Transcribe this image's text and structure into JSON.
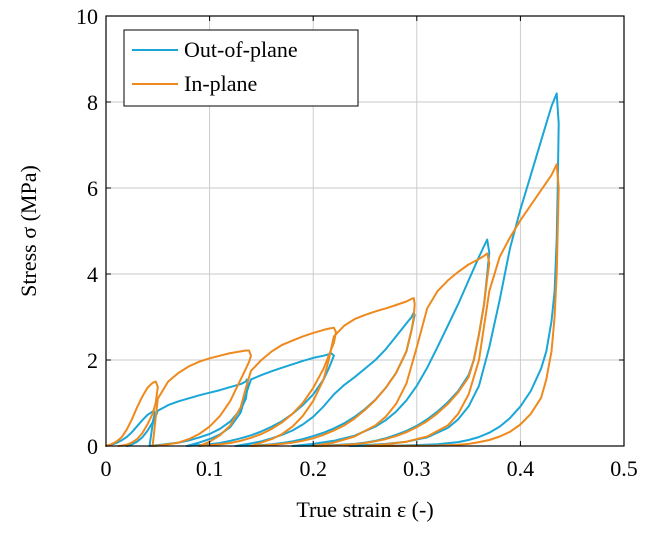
{
  "chart_data": {
    "type": "line",
    "xlabel": "True strain ε (-)",
    "ylabel": "Stress σ (MPa)",
    "xlim": [
      0,
      0.5
    ],
    "ylim": [
      0,
      10
    ],
    "xticks": [
      0,
      0.1,
      0.2,
      0.3,
      0.4,
      0.5
    ],
    "xtick_labels": [
      "0",
      "0.1",
      "0.2",
      "0.3",
      "0.4",
      "0.5"
    ],
    "yticks": [
      0,
      2,
      4,
      6,
      8,
      10
    ],
    "ytick_labels": [
      "0",
      "2",
      "4",
      "6",
      "8",
      "10"
    ],
    "grid": true,
    "legend_position": "top-left",
    "series": [
      {
        "name": "Out-of-plane",
        "color": "#1aa6d6",
        "cycles": [
          {
            "x": [
              0.0,
              0.005,
              0.01,
              0.015,
              0.02,
              0.025,
              0.03,
              0.035,
              0.04,
              0.045,
              0.046,
              0.047,
              0.045,
              0.04,
              0.035,
              0.03,
              0.025,
              0.022,
              0.02
            ],
            "y": [
              0.0,
              0.03,
              0.07,
              0.13,
              0.21,
              0.32,
              0.46,
              0.6,
              0.72,
              0.8,
              0.82,
              0.75,
              0.55,
              0.35,
              0.2,
              0.1,
              0.04,
              0.01,
              0.0
            ]
          },
          {
            "x": [
              0.042,
              0.045,
              0.05,
              0.06,
              0.07,
              0.08,
              0.09,
              0.1,
              0.11,
              0.12,
              0.13,
              0.135,
              0.136,
              0.137,
              0.135,
              0.13,
              0.12,
              0.11,
              0.1,
              0.09,
              0.08,
              0.07,
              0.06,
              0.05,
              0.045,
              0.042
            ],
            "y": [
              0.0,
              0.5,
              0.82,
              0.95,
              1.04,
              1.11,
              1.18,
              1.24,
              1.3,
              1.37,
              1.44,
              1.5,
              1.55,
              1.45,
              1.1,
              0.85,
              0.57,
              0.4,
              0.28,
              0.2,
              0.13,
              0.08,
              0.05,
              0.02,
              0.01,
              0.0
            ]
          },
          {
            "x": [
              0.078,
              0.09,
              0.1,
              0.11,
              0.12,
              0.13,
              0.135,
              0.14,
              0.15,
              0.16,
              0.17,
              0.18,
              0.19,
              0.2,
              0.21,
              0.215,
              0.218,
              0.22,
              0.215,
              0.21,
              0.2,
              0.19,
              0.18,
              0.17,
              0.16,
              0.15,
              0.14,
              0.13,
              0.12,
              0.11,
              0.1,
              0.09,
              0.078
            ],
            "y": [
              0.0,
              0.08,
              0.16,
              0.27,
              0.44,
              0.78,
              1.2,
              1.55,
              1.65,
              1.74,
              1.82,
              1.9,
              1.98,
              2.05,
              2.1,
              2.13,
              2.15,
              2.1,
              1.8,
              1.55,
              1.2,
              0.95,
              0.75,
              0.58,
              0.45,
              0.34,
              0.25,
              0.18,
              0.12,
              0.07,
              0.04,
              0.02,
              0.0
            ]
          },
          {
            "x": [
              0.125,
              0.14,
              0.15,
              0.16,
              0.17,
              0.18,
              0.19,
              0.2,
              0.21,
              0.22,
              0.23,
              0.24,
              0.25,
              0.26,
              0.27,
              0.28,
              0.29,
              0.295,
              0.297,
              0.298,
              0.295,
              0.29,
              0.28,
              0.27,
              0.26,
              0.25,
              0.24,
              0.23,
              0.22,
              0.21,
              0.2,
              0.19,
              0.18,
              0.17,
              0.16,
              0.15,
              0.14,
              0.125
            ],
            "y": [
              0.0,
              0.06,
              0.11,
              0.18,
              0.26,
              0.36,
              0.5,
              0.68,
              0.92,
              1.2,
              1.42,
              1.6,
              1.8,
              2.0,
              2.25,
              2.55,
              2.85,
              3.0,
              3.1,
              3.05,
              2.7,
              2.2,
              1.7,
              1.35,
              1.08,
              0.86,
              0.68,
              0.53,
              0.41,
              0.31,
              0.23,
              0.16,
              0.11,
              0.07,
              0.04,
              0.02,
              0.01,
              0.0
            ]
          },
          {
            "x": [
              0.18,
              0.2,
              0.22,
              0.24,
              0.26,
              0.27,
              0.28,
              0.29,
              0.3,
              0.31,
              0.32,
              0.33,
              0.34,
              0.35,
              0.36,
              0.365,
              0.368,
              0.37,
              0.368,
              0.365,
              0.36,
              0.355,
              0.35,
              0.34,
              0.33,
              0.32,
              0.31,
              0.3,
              0.29,
              0.28,
              0.27,
              0.26,
              0.25,
              0.24,
              0.22,
              0.2,
              0.18
            ],
            "y": [
              0.0,
              0.05,
              0.12,
              0.24,
              0.45,
              0.6,
              0.8,
              1.06,
              1.4,
              1.82,
              2.3,
              2.8,
              3.3,
              3.85,
              4.4,
              4.65,
              4.8,
              4.5,
              4.0,
              3.3,
              2.6,
              2.0,
              1.65,
              1.28,
              1.02,
              0.8,
              0.62,
              0.47,
              0.35,
              0.26,
              0.18,
              0.12,
              0.08,
              0.05,
              0.02,
              0.01,
              0.0
            ]
          },
          {
            "x": [
              0.235,
              0.25,
              0.27,
              0.29,
              0.31,
              0.33,
              0.34,
              0.35,
              0.36,
              0.37,
              0.38,
              0.39,
              0.4,
              0.41,
              0.42,
              0.43,
              0.435,
              0.437,
              0.436,
              0.435,
              0.433,
              0.43,
              0.425,
              0.42,
              0.41,
              0.4,
              0.39,
              0.38,
              0.37,
              0.36,
              0.35,
              0.34,
              0.32,
              0.3,
              0.28,
              0.26,
              0.25,
              0.235
            ],
            "y": [
              0.0,
              0.02,
              0.05,
              0.1,
              0.2,
              0.42,
              0.62,
              0.92,
              1.4,
              2.3,
              3.4,
              4.6,
              5.5,
              6.3,
              7.1,
              7.9,
              8.2,
              7.5,
              6.0,
              4.8,
              3.6,
              2.9,
              2.2,
              1.8,
              1.28,
              0.92,
              0.65,
              0.45,
              0.31,
              0.21,
              0.14,
              0.09,
              0.04,
              0.02,
              0.01,
              0.005,
              0.002,
              0.0
            ]
          }
        ]
      },
      {
        "name": "In-plane",
        "color": "#ee8a1d",
        "cycles": [
          {
            "x": [
              0.0,
              0.005,
              0.01,
              0.015,
              0.02,
              0.025,
              0.03,
              0.035,
              0.04,
              0.045,
              0.048,
              0.05,
              0.048,
              0.045,
              0.04,
              0.035,
              0.03,
              0.025,
              0.02,
              0.015,
              0.012
            ],
            "y": [
              0.0,
              0.04,
              0.1,
              0.2,
              0.38,
              0.62,
              0.9,
              1.15,
              1.35,
              1.47,
              1.5,
              1.38,
              1.0,
              0.75,
              0.5,
              0.3,
              0.16,
              0.08,
              0.03,
              0.01,
              0.0
            ]
          },
          {
            "x": [
              0.045,
              0.05,
              0.06,
              0.07,
              0.08,
              0.09,
              0.1,
              0.11,
              0.12,
              0.13,
              0.135,
              0.138,
              0.14,
              0.138,
              0.135,
              0.13,
              0.125,
              0.12,
              0.11,
              0.1,
              0.09,
              0.08,
              0.07,
              0.06,
              0.05,
              0.045
            ],
            "y": [
              0.0,
              1.1,
              1.5,
              1.7,
              1.85,
              1.96,
              2.04,
              2.1,
              2.16,
              2.2,
              2.22,
              2.22,
              2.1,
              1.95,
              1.8,
              1.55,
              1.3,
              1.05,
              0.7,
              0.45,
              0.28,
              0.16,
              0.08,
              0.04,
              0.01,
              0.0
            ]
          },
          {
            "x": [
              0.09,
              0.1,
              0.11,
              0.12,
              0.13,
              0.135,
              0.14,
              0.15,
              0.16,
              0.17,
              0.18,
              0.19,
              0.2,
              0.21,
              0.215,
              0.22,
              0.222,
              0.22,
              0.215,
              0.21,
              0.2,
              0.19,
              0.18,
              0.17,
              0.16,
              0.15,
              0.14,
              0.13,
              0.12,
              0.11,
              0.1,
              0.09
            ],
            "y": [
              0.0,
              0.1,
              0.25,
              0.48,
              0.9,
              1.35,
              1.75,
              2.0,
              2.2,
              2.35,
              2.45,
              2.55,
              2.63,
              2.7,
              2.73,
              2.75,
              2.65,
              2.4,
              2.1,
              1.8,
              1.35,
              1.0,
              0.75,
              0.55,
              0.4,
              0.28,
              0.19,
              0.12,
              0.07,
              0.04,
              0.02,
              0.0
            ]
          },
          {
            "x": [
              0.14,
              0.15,
              0.16,
              0.17,
              0.18,
              0.19,
              0.2,
              0.21,
              0.215,
              0.22,
              0.23,
              0.24,
              0.25,
              0.26,
              0.27,
              0.28,
              0.29,
              0.295,
              0.297,
              0.298,
              0.297,
              0.295,
              0.29,
              0.28,
              0.27,
              0.26,
              0.25,
              0.24,
              0.23,
              0.22,
              0.21,
              0.2,
              0.19,
              0.18,
              0.17,
              0.16,
              0.15,
              0.14
            ],
            "y": [
              0.0,
              0.08,
              0.16,
              0.28,
              0.45,
              0.7,
              1.05,
              1.55,
              2.0,
              2.55,
              2.8,
              2.95,
              3.05,
              3.13,
              3.2,
              3.28,
              3.36,
              3.42,
              3.44,
              3.3,
              3.0,
              2.7,
              2.2,
              1.7,
              1.35,
              1.07,
              0.84,
              0.64,
              0.48,
              0.36,
              0.26,
              0.18,
              0.12,
              0.08,
              0.05,
              0.03,
              0.01,
              0.0
            ]
          },
          {
            "x": [
              0.2,
              0.22,
              0.24,
              0.26,
              0.27,
              0.28,
              0.29,
              0.3,
              0.31,
              0.32,
              0.33,
              0.34,
              0.35,
              0.36,
              0.365,
              0.368,
              0.37,
              0.368,
              0.365,
              0.36,
              0.355,
              0.35,
              0.34,
              0.33,
              0.32,
              0.31,
              0.3,
              0.29,
              0.28,
              0.27,
              0.26,
              0.25,
              0.24,
              0.22,
              0.2
            ],
            "y": [
              0.0,
              0.08,
              0.22,
              0.48,
              0.68,
              0.98,
              1.45,
              2.3,
              3.2,
              3.6,
              3.85,
              4.05,
              4.22,
              4.35,
              4.42,
              4.48,
              4.25,
              3.9,
              3.3,
              2.6,
              2.0,
              1.6,
              1.25,
              0.98,
              0.76,
              0.58,
              0.44,
              0.32,
              0.23,
              0.16,
              0.11,
              0.07,
              0.04,
              0.01,
              0.0
            ]
          },
          {
            "x": [
              0.25,
              0.27,
              0.29,
              0.31,
              0.33,
              0.34,
              0.35,
              0.36,
              0.37,
              0.38,
              0.39,
              0.4,
              0.41,
              0.42,
              0.43,
              0.435,
              0.437,
              0.436,
              0.435,
              0.433,
              0.43,
              0.425,
              0.42,
              0.41,
              0.4,
              0.39,
              0.38,
              0.37,
              0.36,
              0.35,
              0.34,
              0.32,
              0.3,
              0.28,
              0.26,
              0.25
            ],
            "y": [
              0.0,
              0.04,
              0.1,
              0.22,
              0.48,
              0.75,
              1.2,
              2.0,
              3.6,
              4.4,
              4.85,
              5.25,
              5.6,
              5.95,
              6.3,
              6.55,
              6.0,
              5.0,
              4.0,
              3.0,
              2.2,
              1.55,
              1.12,
              0.75,
              0.5,
              0.33,
              0.22,
              0.14,
              0.09,
              0.05,
              0.03,
              0.01,
              0.005,
              0.002,
              0.001,
              0.0
            ]
          }
        ]
      }
    ]
  }
}
